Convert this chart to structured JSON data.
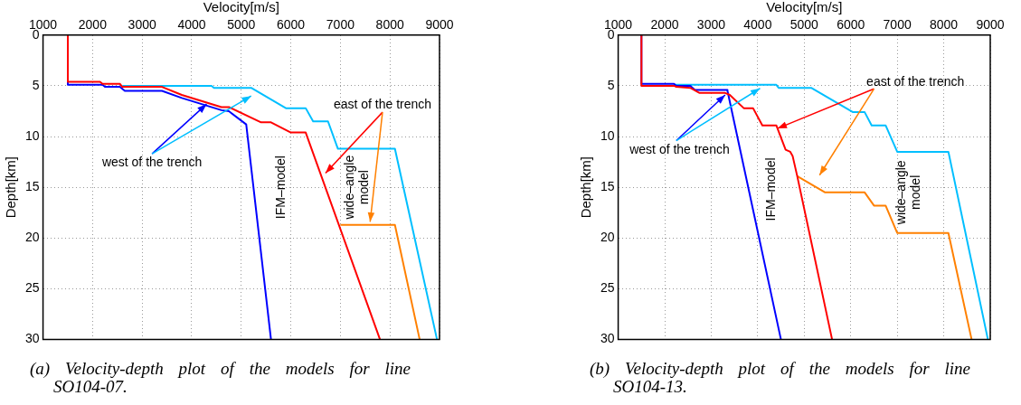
{
  "chart_data": [
    {
      "type": "line",
      "title": "(a) Velocity-depth plot of the models for line SO104-07.",
      "xlabel": "Velocity[m/s]",
      "ylabel": "Depth[km]",
      "xlim": [
        1000,
        9000
      ],
      "xticks": [
        1000,
        2000,
        3000,
        4000,
        5000,
        6000,
        7000,
        8000,
        9000
      ],
      "ylim": [
        30,
        0
      ],
      "yticks": [
        0,
        5,
        10,
        15,
        20,
        25,
        30
      ],
      "grid": true,
      "marker": "none",
      "line_style": "solid",
      "annotations": [
        {
          "text": "west of the trench",
          "x": 4300,
          "y": 6.8
        },
        {
          "text": "east of the trench",
          "x": 6700,
          "y": 13.6
        },
        "IFM–model",
        "wide–angle model"
      ],
      "series": [
        {
          "color": "#ff0000",
          "x": [
            1500,
            1500,
            2150,
            2200,
            2550,
            2600,
            3400,
            3800,
            4600,
            4750,
            5400,
            5600,
            6000,
            6300,
            7800
          ],
          "values": [
            0,
            4.6,
            4.6,
            4.8,
            4.8,
            5.1,
            5.1,
            5.9,
            7.1,
            7.1,
            8.6,
            8.6,
            9.6,
            9.6,
            30
          ]
        },
        {
          "color": "#0000ff",
          "x": [
            1500,
            1500,
            2200,
            2250,
            2550,
            2650,
            3400,
            3800,
            4600,
            4750,
            5100,
            5600
          ],
          "values": [
            0,
            4.9,
            4.9,
            5.1,
            5.1,
            5.5,
            5.5,
            6.2,
            7.4,
            7.5,
            8.8,
            30
          ]
        },
        {
          "color": "#00bfff",
          "x": [
            2600,
            4400,
            4450,
            5200,
            5900,
            6300,
            6450,
            6750,
            6950,
            8100,
            8950
          ],
          "values": [
            5.0,
            5.0,
            5.2,
            5.2,
            7.2,
            7.2,
            8.5,
            8.5,
            11.2,
            11.2,
            30
          ]
        },
        {
          "color": "#ff8000",
          "x": [
            7000,
            8100,
            8600
          ],
          "values": [
            18.7,
            18.7,
            30
          ]
        }
      ]
    },
    {
      "type": "line",
      "title": "(b) Velocity-depth plot of the models for line SO104-13.",
      "xlabel": "Velocity[m/s]",
      "ylabel": "Depth[km]",
      "xlim": [
        1000,
        9000
      ],
      "xticks": [
        1000,
        2000,
        3000,
        4000,
        5000,
        6000,
        7000,
        8000,
        9000
      ],
      "ylim": [
        30,
        0
      ],
      "yticks": [
        0,
        5,
        10,
        15,
        20,
        25,
        30
      ],
      "grid": true,
      "marker": "none",
      "line_style": "solid",
      "annotations": [
        {
          "text": "west of the trench",
          "x": 3300,
          "y": 5.9
        },
        {
          "text": "east of the trench",
          "x": 4425,
          "y": 9.2
        },
        "IFM–model",
        "wide–angle model"
      ],
      "series": [
        {
          "color": "#ff0000",
          "x": [
            1500,
            1500,
            2200,
            2250,
            2550,
            2750,
            3300,
            3400,
            3700,
            3900,
            4100,
            4400,
            4600,
            4700,
            4750,
            4850,
            5600
          ],
          "values": [
            0,
            5.0,
            5.0,
            5.1,
            5.2,
            5.7,
            5.7,
            5.9,
            7.2,
            7.2,
            8.9,
            8.9,
            11.3,
            11.5,
            11.9,
            13.9,
            30
          ]
        },
        {
          "color": "#0000ff",
          "x": [
            1500,
            1500,
            2200,
            2250,
            2550,
            2650,
            3350,
            3350,
            4500
          ],
          "values": [
            0,
            4.8,
            4.8,
            5.0,
            5.0,
            5.4,
            5.4,
            5.5,
            30
          ]
        },
        {
          "color": "#00bfff",
          "x": [
            2200,
            4400,
            4450,
            5150,
            6050,
            6300,
            6450,
            6750,
            7000,
            8100,
            8950
          ],
          "values": [
            4.9,
            4.9,
            5.2,
            5.2,
            7.6,
            7.6,
            8.9,
            8.9,
            11.5,
            11.5,
            30
          ]
        },
        {
          "color": "#ff8000",
          "x": [
            4850,
            5450,
            6300,
            6500,
            6750,
            7000,
            8100,
            8600
          ],
          "values": [
            13.9,
            15.5,
            15.5,
            16.8,
            16.8,
            19.5,
            19.5,
            30
          ]
        }
      ]
    }
  ]
}
